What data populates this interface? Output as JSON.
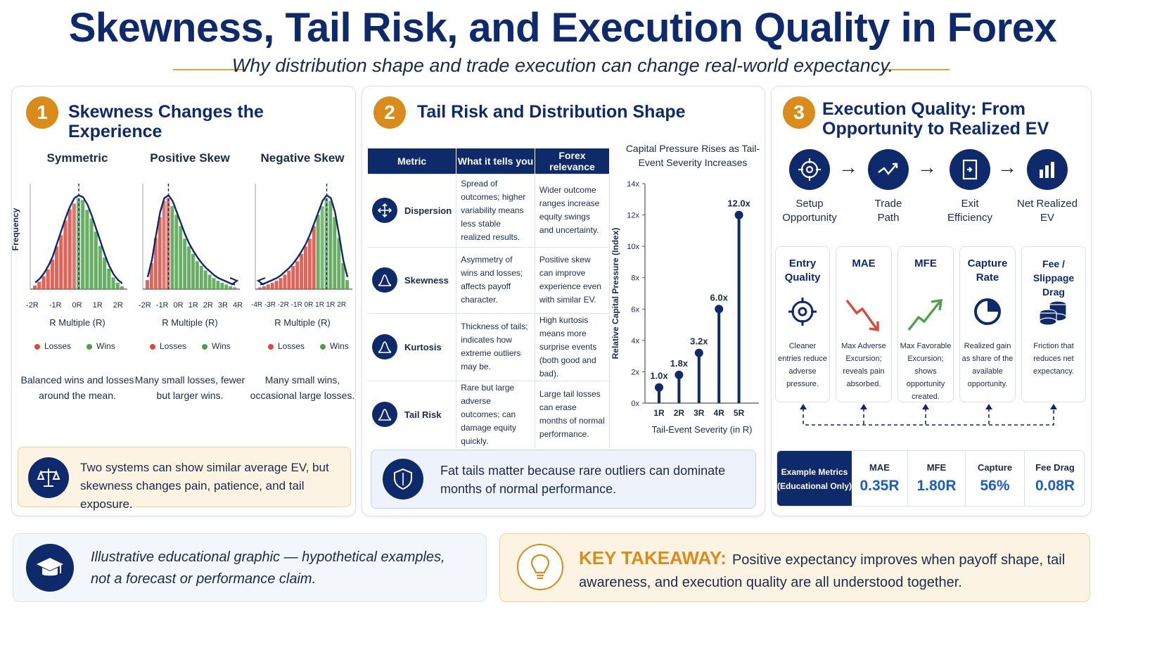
{
  "header": {
    "title": "Skewness, Tail Risk, and Execution Quality in Forex",
    "subtitle": "Why distribution shape and trade execution can change real-world expectancy."
  },
  "colors": {
    "navy": "#0f2a6b",
    "gold": "#d98b1c",
    "loss": "#d94a3d",
    "win": "#4fa04a",
    "median": "#5b8fd1"
  },
  "panel1": {
    "number": "1",
    "title": "Skewness Changes the Experience",
    "y_axis_label": "Frequency",
    "x_axis_label": "R Multiple (R)",
    "legend": {
      "losses": "Losses",
      "wins": "Wins"
    },
    "distributions": [
      {
        "title": "Symmetric",
        "ticks": "-2R -1R 0R 1R 2R",
        "caption": "Balanced wins and losses around the mean.",
        "bars": [
          0.04,
          0.08,
          0.14,
          0.22,
          0.32,
          0.46,
          0.6,
          0.74,
          0.86,
          0.95,
          0.98,
          0.96,
          0.88,
          0.76,
          0.62,
          0.48,
          0.34,
          0.22,
          0.13,
          0.07,
          0.03
        ],
        "loss_bars": 10
      },
      {
        "title": "Positive Skew",
        "ticks": "-2R -1R 0R 1R 2R 3R 4R",
        "caption": "Many small losses, fewer but larger wins.",
        "bars": [
          0.1,
          0.28,
          0.55,
          0.8,
          0.95,
          0.98,
          0.92,
          0.8,
          0.68,
          0.56,
          0.46,
          0.38,
          0.31,
          0.25,
          0.2,
          0.16,
          0.12,
          0.09,
          0.07,
          0.05,
          0.03,
          0.02
        ],
        "loss_bars": 6
      },
      {
        "title": "Negative Skew",
        "ticks": "-4R -3R -2R -1R 0R 1R 1R 2R",
        "caption": "Many small wins, occasional large losses.",
        "bars": [
          0.02,
          0.03,
          0.05,
          0.07,
          0.09,
          0.12,
          0.16,
          0.2,
          0.25,
          0.31,
          0.38,
          0.46,
          0.56,
          0.68,
          0.8,
          0.92,
          0.98,
          0.95,
          0.8,
          0.55,
          0.28,
          0.1
        ],
        "loss_bars": 14
      }
    ],
    "callout": "Two systems can show similar average EV, but skewness changes pain, patience, and tail exposure."
  },
  "panel2": {
    "number": "2",
    "title": "Tail Risk and Distribution Shape",
    "table": {
      "headers": [
        "Metric",
        "What it tells you",
        "Forex relevance"
      ],
      "rows": [
        {
          "metric": "Dispersion",
          "icon": "arrows-icon",
          "tells": "Spread of outcomes; higher variability means less stable realized results.",
          "relevance": "Wider outcome ranges increase equity swings and uncertainty."
        },
        {
          "metric": "Skewness",
          "icon": "bell-curve-icon",
          "tells": "Asymmetry of wins and losses; affects payoff character.",
          "relevance": "Positive skew can improve experience even with similar EV."
        },
        {
          "metric": "Kurtosis",
          "icon": "bell-curve-icon",
          "tells": "Thickness of tails; indicates how extreme outliers may be.",
          "relevance": "High kurtosis means more surprise events (both good and bad)."
        },
        {
          "metric": "Tail Risk",
          "icon": "bell-curve-icon",
          "tells": "Rare but large adverse outcomes; can damage equity quickly.",
          "relevance": "Large tail losses can erase months of normal performance."
        }
      ]
    },
    "callout": "Fat tails matter because rare outliers can dominate months of normal performance."
  },
  "chart_data": {
    "type": "bar",
    "title": "Capital Pressure Rises as Tail-Event Severity Increases",
    "xlabel": "Tail-Event Severity (in R)",
    "ylabel": "Relative Capital Pressure (Index)",
    "categories": [
      "1R",
      "2R",
      "3R",
      "4R",
      "5R"
    ],
    "values": [
      1.0,
      1.8,
      3.2,
      6.0,
      12.0
    ],
    "data_labels": [
      "1.0x",
      "1.8x",
      "3.2x",
      "6.0x",
      "12.0x"
    ],
    "yticks": [
      "0x",
      "2x",
      "4x",
      "6x",
      "8x",
      "10x",
      "12x",
      "14x"
    ],
    "ylim": [
      0,
      14
    ],
    "style": "lollipop",
    "grid": false
  },
  "panel3": {
    "number": "3",
    "title": "Execution Quality: From Opportunity to Realized EV",
    "flow": [
      {
        "label": "Setup Opportunity",
        "icon": "crosshair-icon"
      },
      {
        "label": "Trade Path",
        "icon": "trend-icon"
      },
      {
        "label": "Exit Efficiency",
        "icon": "exit-door-icon"
      },
      {
        "label": "Net Realized EV",
        "icon": "bar-chart-icon"
      }
    ],
    "cards": [
      {
        "title": "Entry Quality",
        "desc": "Cleaner entries reduce adverse pressure.",
        "icon": "target-icon"
      },
      {
        "title": "MAE",
        "desc": "Max Adverse Excursion; reveals pain absorbed.",
        "icon": "down-trend-icon"
      },
      {
        "title": "MFE",
        "desc": "Max Favorable Excursion; shows opportunity created.",
        "icon": "up-trend-icon"
      },
      {
        "title": "Capture Rate",
        "desc": "Realized gain as share of the available opportunity.",
        "icon": "pie-icon"
      },
      {
        "title": "Fee / Slippage Drag",
        "desc": "Friction that reduces net expectancy.",
        "icon": "coins-icon"
      }
    ],
    "metrics_header": "Example Metrics (Educational Only)",
    "metrics": [
      {
        "label": "MAE",
        "value": "0.35R"
      },
      {
        "label": "MFE",
        "value": "1.80R"
      },
      {
        "label": "Capture",
        "value": "56%"
      },
      {
        "label": "Fee Drag",
        "value": "0.08R"
      }
    ]
  },
  "footer": {
    "disclaimer": "Illustrative educational graphic — hypothetical examples, not a forecast or performance claim.",
    "takeaway_label": "KEY TAKEAWAY:",
    "takeaway_text": "Positive expectancy improves when payoff shape, tail awareness, and execution quality are all understood together."
  }
}
